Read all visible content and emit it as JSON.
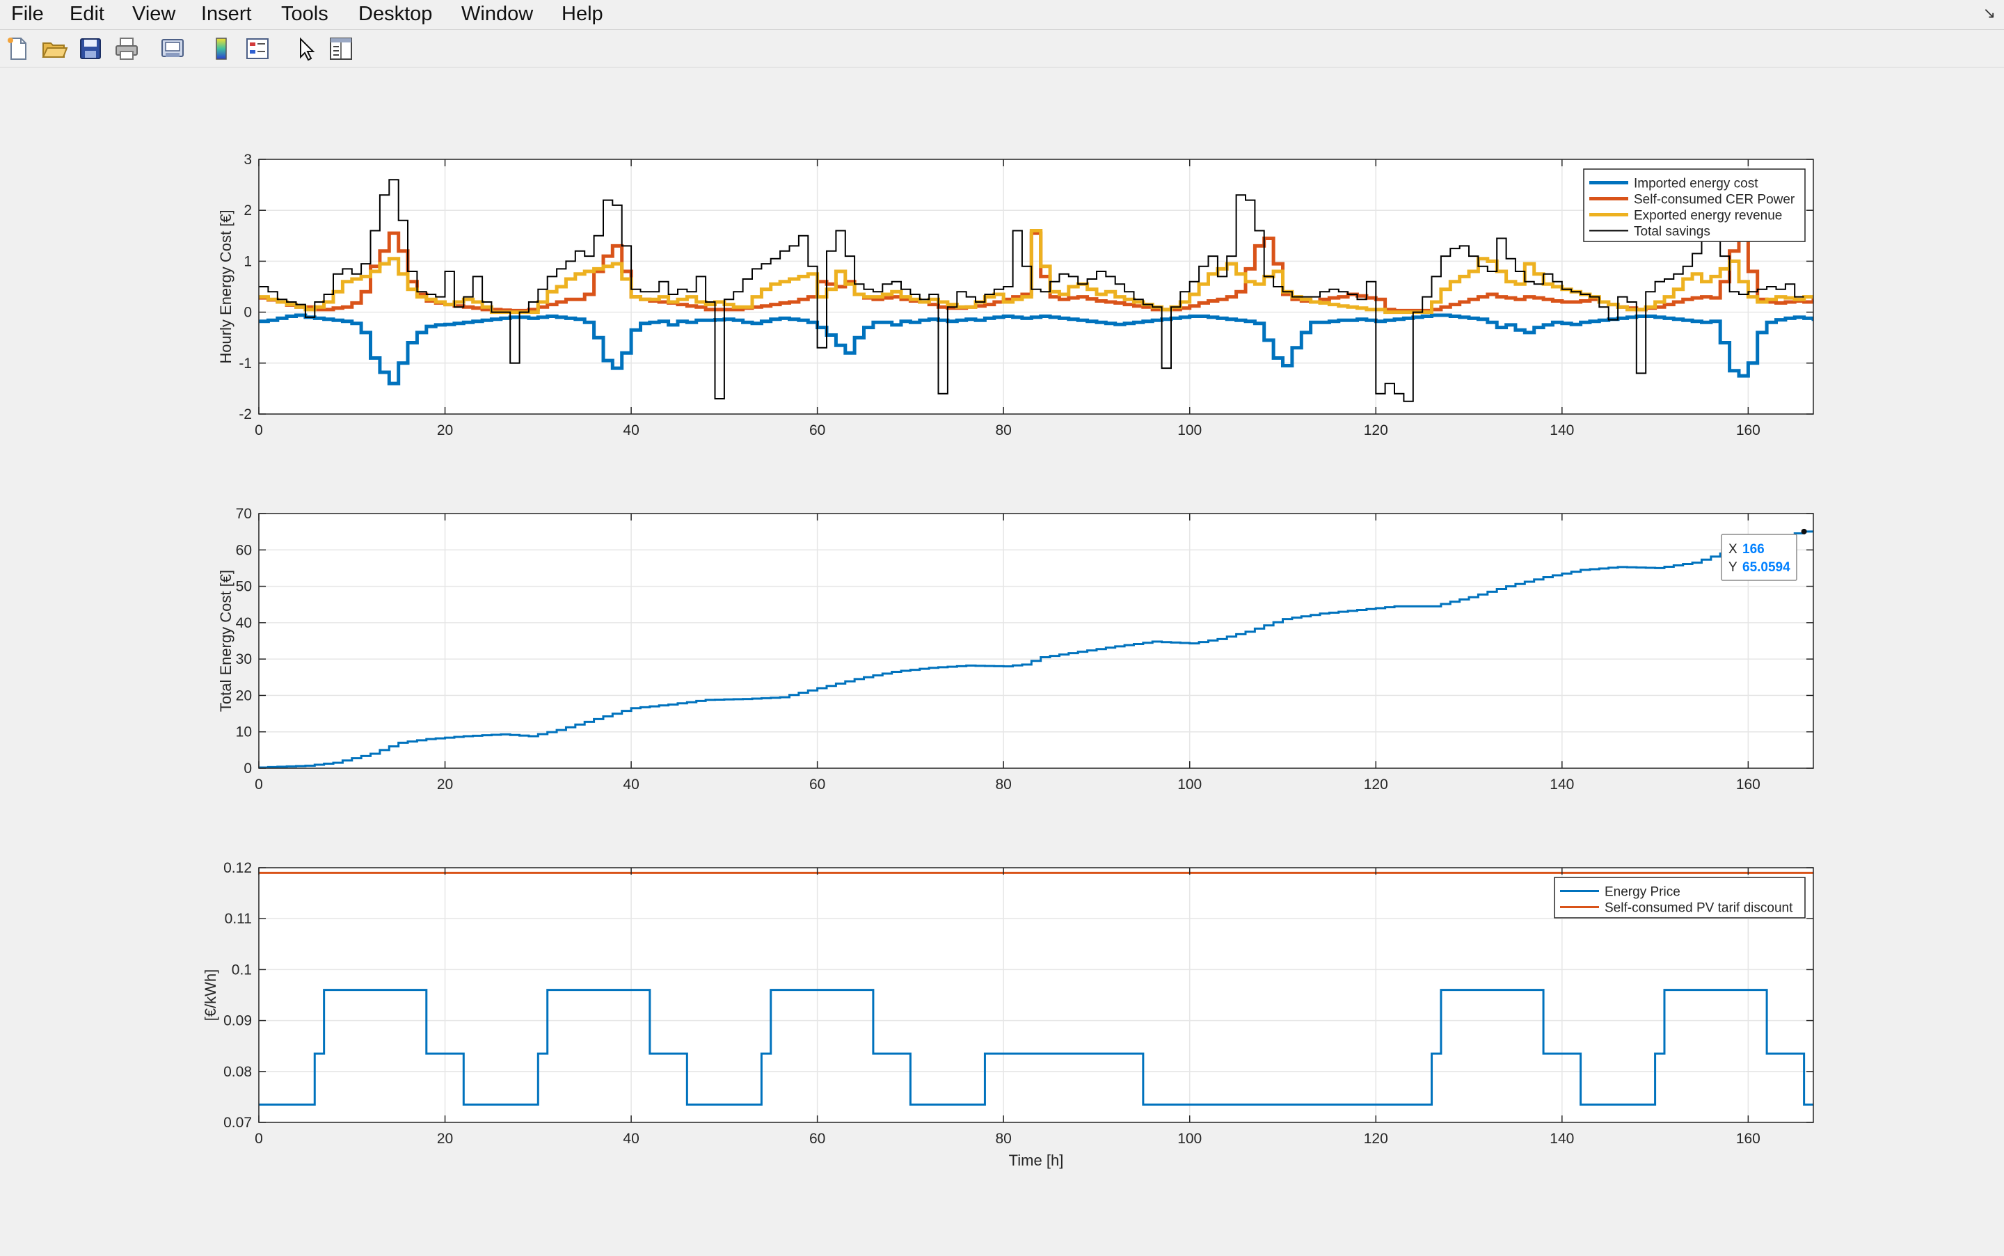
{
  "menu": [
    "File",
    "Edit",
    "View",
    "Insert",
    "Tools",
    "Desktop",
    "Window",
    "Help"
  ],
  "toolbar": [
    "new-figure-icon",
    "open-folder-icon",
    "save-icon",
    "print-icon",
    "print-preview-icon",
    "colorbar-icon",
    "legend-icon",
    "pointer-icon",
    "property-inspector-icon"
  ],
  "chart_data": [
    {
      "type": "line",
      "xlabel": "",
      "ylabel": "Hourly Energy Cost [€]",
      "xlim": [
        0,
        167
      ],
      "ylim": [
        -2,
        3
      ],
      "xticks": [
        0,
        20,
        40,
        60,
        80,
        100,
        120,
        140,
        160
      ],
      "yticks": [
        -2,
        -1,
        0,
        1,
        2,
        3
      ],
      "grid": true,
      "legend_position": "top-right",
      "series": [
        {
          "name": "Imported energy cost",
          "color": "#0072BD",
          "width": 5,
          "values": [
            -0.18,
            -0.16,
            -0.12,
            -0.08,
            -0.06,
            -0.1,
            -0.12,
            -0.14,
            -0.16,
            -0.18,
            -0.22,
            -0.4,
            -0.9,
            -1.18,
            -1.4,
            -1.0,
            -0.6,
            -0.4,
            -0.28,
            -0.25,
            -0.24,
            -0.22,
            -0.2,
            -0.18,
            -0.16,
            -0.14,
            -0.12,
            -0.1,
            -0.1,
            -0.12,
            -0.1,
            -0.08,
            -0.1,
            -0.12,
            -0.14,
            -0.2,
            -0.5,
            -0.95,
            -1.1,
            -0.8,
            -0.35,
            -0.22,
            -0.2,
            -0.18,
            -0.25,
            -0.18,
            -0.2,
            -0.16,
            -0.16,
            -0.15,
            -0.14,
            -0.16,
            -0.2,
            -0.22,
            -0.18,
            -0.14,
            -0.12,
            -0.14,
            -0.16,
            -0.2,
            -0.3,
            -0.45,
            -0.65,
            -0.8,
            -0.5,
            -0.3,
            -0.2,
            -0.2,
            -0.25,
            -0.18,
            -0.2,
            -0.16,
            -0.14,
            -0.16,
            -0.18,
            -0.16,
            -0.14,
            -0.16,
            -0.12,
            -0.1,
            -0.08,
            -0.1,
            -0.12,
            -0.1,
            -0.08,
            -0.1,
            -0.12,
            -0.14,
            -0.16,
            -0.18,
            -0.2,
            -0.22,
            -0.24,
            -0.22,
            -0.2,
            -0.18,
            -0.16,
            -0.14,
            -0.12,
            -0.1,
            -0.08,
            -0.08,
            -0.1,
            -0.12,
            -0.14,
            -0.16,
            -0.18,
            -0.22,
            -0.55,
            -0.9,
            -1.05,
            -0.7,
            -0.4,
            -0.2,
            -0.2,
            -0.18,
            -0.16,
            -0.16,
            -0.14,
            -0.16,
            -0.18,
            -0.16,
            -0.14,
            -0.12,
            -0.1,
            -0.08,
            -0.06,
            -0.06,
            -0.08,
            -0.1,
            -0.12,
            -0.14,
            -0.2,
            -0.3,
            -0.25,
            -0.35,
            -0.4,
            -0.3,
            -0.25,
            -0.2,
            -0.22,
            -0.24,
            -0.2,
            -0.18,
            -0.16,
            -0.14,
            -0.12,
            -0.1,
            -0.08,
            -0.08,
            -0.1,
            -0.12,
            -0.14,
            -0.16,
            -0.18,
            -0.2,
            -0.18,
            -0.6,
            -1.15,
            -1.25,
            -1.0,
            -0.4,
            -0.2,
            -0.15,
            -0.12,
            -0.1,
            -0.12,
            -0.14,
            -0.16,
            -0.15
          ]
        },
        {
          "name": "Self-consumed CER Power",
          "color": "#D95319",
          "width": 5,
          "values": [
            0.28,
            0.24,
            0.2,
            0.14,
            0.1,
            0.1,
            0.05,
            0.05,
            0.08,
            0.1,
            0.18,
            0.4,
            0.9,
            1.2,
            1.55,
            1.2,
            0.6,
            0.35,
            0.22,
            0.18,
            0.15,
            0.12,
            0.1,
            0.08,
            0.05,
            0.05,
            0.04,
            0.03,
            0.03,
            0.05,
            0.1,
            0.15,
            0.2,
            0.25,
            0.25,
            0.35,
            0.8,
            1.1,
            1.3,
            0.8,
            0.3,
            0.25,
            0.22,
            0.2,
            0.18,
            0.15,
            0.12,
            0.1,
            0.05,
            0.05,
            0.05,
            0.05,
            0.08,
            0.1,
            0.12,
            0.15,
            0.18,
            0.2,
            0.25,
            0.3,
            0.6,
            0.55,
            0.5,
            0.6,
            0.35,
            0.28,
            0.25,
            0.28,
            0.3,
            0.25,
            0.22,
            0.2,
            0.15,
            0.1,
            0.08,
            0.08,
            0.1,
            0.12,
            0.15,
            0.2,
            0.25,
            0.3,
            0.35,
            1.55,
            0.7,
            0.3,
            0.25,
            0.28,
            0.3,
            0.26,
            0.22,
            0.2,
            0.18,
            0.15,
            0.12,
            0.1,
            0.05,
            0.05,
            0.05,
            0.08,
            0.12,
            0.18,
            0.22,
            0.25,
            0.3,
            0.4,
            0.85,
            1.3,
            1.45,
            0.95,
            0.35,
            0.25,
            0.22,
            0.2,
            0.25,
            0.28,
            0.3,
            0.35,
            0.32,
            0.28,
            0.25,
            0.05,
            0.03,
            0.03,
            0.03,
            0.03,
            0.05,
            0.1,
            0.15,
            0.2,
            0.25,
            0.3,
            0.35,
            0.3,
            0.28,
            0.25,
            0.3,
            0.28,
            0.25,
            0.22,
            0.2,
            0.2,
            0.22,
            0.25,
            0.2,
            0.15,
            0.1,
            0.08,
            0.05,
            0.08,
            0.1,
            0.15,
            0.2,
            0.25,
            0.28,
            0.3,
            0.28,
            0.6,
            1.2,
            1.6,
            0.8,
            0.25,
            0.2,
            0.18,
            0.2,
            0.22,
            0.2,
            0.25,
            0.2
          ]
        },
        {
          "name": "Exported energy revenue",
          "color": "#EDB120",
          "width": 5,
          "values": [
            0.3,
            0.25,
            0.2,
            0.15,
            0.1,
            0.05,
            0.1,
            0.2,
            0.4,
            0.6,
            0.65,
            0.7,
            0.8,
            0.95,
            1.05,
            0.75,
            0.45,
            0.3,
            0.25,
            0.2,
            0.15,
            0.2,
            0.25,
            0.2,
            0.1,
            0.0,
            0.0,
            0.0,
            0.0,
            0.0,
            0.2,
            0.4,
            0.5,
            0.65,
            0.75,
            0.8,
            0.85,
            0.9,
            0.95,
            0.65,
            0.3,
            0.25,
            0.25,
            0.3,
            0.2,
            0.25,
            0.3,
            0.2,
            0.15,
            0.2,
            0.15,
            0.1,
            0.1,
            0.3,
            0.45,
            0.55,
            0.6,
            0.65,
            0.7,
            0.75,
            0.3,
            0.45,
            0.8,
            0.55,
            0.35,
            0.3,
            0.3,
            0.35,
            0.4,
            0.3,
            0.25,
            0.2,
            0.25,
            0.2,
            0.15,
            0.1,
            0.1,
            0.2,
            0.3,
            0.35,
            0.2,
            0.25,
            0.3,
            1.6,
            0.9,
            0.4,
            0.35,
            0.5,
            0.55,
            0.45,
            0.35,
            0.4,
            0.3,
            0.25,
            0.2,
            0.15,
            0.1,
            0.05,
            0.1,
            0.2,
            0.35,
            0.55,
            0.75,
            0.85,
            0.95,
            0.75,
            0.6,
            0.55,
            0.7,
            0.8,
            0.4,
            0.3,
            0.25,
            0.2,
            0.18,
            0.15,
            0.12,
            0.1,
            0.08,
            0.05,
            0.05,
            0.0,
            0.0,
            0.0,
            0.0,
            0.0,
            0.2,
            0.45,
            0.6,
            0.7,
            0.8,
            1.05,
            1.0,
            0.8,
            0.6,
            0.55,
            0.95,
            0.75,
            0.55,
            0.5,
            0.45,
            0.4,
            0.35,
            0.3,
            0.2,
            0.15,
            0.1,
            0.05,
            0.05,
            0.1,
            0.2,
            0.3,
            0.45,
            0.65,
            0.75,
            0.6,
            0.7,
            0.85,
            1.0,
            0.6,
            0.3,
            0.2,
            0.25,
            0.3,
            0.28,
            0.25,
            0.3
          ]
        },
        {
          "name": "Total savings",
          "color": "#000000",
          "width": 2,
          "values": [
            0.5,
            0.4,
            0.25,
            0.2,
            0.15,
            -0.1,
            0.2,
            0.35,
            0.75,
            0.85,
            0.75,
            0.95,
            1.6,
            2.3,
            2.6,
            1.8,
            0.8,
            0.4,
            0.35,
            0.3,
            0.8,
            0.1,
            0.3,
            0.7,
            0.2,
            0.0,
            0.0,
            -1.0,
            0.0,
            0.2,
            0.45,
            0.7,
            0.85,
            1.0,
            1.2,
            1.1,
            1.5,
            2.2,
            2.1,
            1.3,
            0.45,
            0.4,
            0.4,
            0.6,
            0.35,
            0.45,
            0.4,
            0.7,
            0.2,
            -1.7,
            0.25,
            0.4,
            0.65,
            0.85,
            0.95,
            1.05,
            1.2,
            1.3,
            1.5,
            0.9,
            -0.7,
            1.2,
            1.6,
            1.1,
            0.55,
            0.45,
            0.4,
            0.55,
            0.6,
            0.45,
            0.35,
            0.25,
            0.35,
            -1.6,
            0.1,
            0.4,
            0.3,
            0.2,
            0.35,
            0.45,
            0.5,
            1.6,
            0.9,
            0.45,
            0.4,
            0.6,
            0.75,
            0.7,
            0.55,
            0.65,
            0.8,
            0.7,
            0.55,
            0.4,
            0.25,
            0.15,
            0.1,
            -1.1,
            0.1,
            0.4,
            0.6,
            0.9,
            1.1,
            0.7,
            1.1,
            2.3,
            2.2,
            1.6,
            0.7,
            0.5,
            0.4,
            0.3,
            0.3,
            0.3,
            0.4,
            0.45,
            0.4,
            0.35,
            0.25,
            0.6,
            -1.6,
            -1.4,
            -1.6,
            -1.75,
            0.0,
            0.3,
            0.7,
            1.1,
            1.25,
            1.3,
            1.1,
            0.9,
            0.8,
            1.45,
            1.05,
            0.8,
            0.6,
            0.55,
            0.75,
            0.6,
            0.45,
            0.4,
            0.35,
            0.3,
            0.1,
            -0.15,
            0.3,
            0.2,
            -1.2,
            0.4,
            0.6,
            0.65,
            0.75,
            0.9,
            1.15,
            1.4,
            1.9,
            1.1,
            0.4,
            0.35,
            0.4,
            0.45,
            0.5,
            0.45,
            0.55,
            0.3
          ]
        }
      ]
    },
    {
      "type": "line",
      "xlabel": "",
      "ylabel": "Total Energy Cost [€]",
      "xlim": [
        0,
        167
      ],
      "ylim": [
        0,
        70
      ],
      "xticks": [
        0,
        20,
        40,
        60,
        80,
        100,
        120,
        140,
        160
      ],
      "yticks": [
        0,
        10,
        20,
        30,
        40,
        50,
        60,
        70
      ],
      "grid": true,
      "datatip": {
        "X_label": "X",
        "X_value": "166",
        "Y_label": "Y",
        "Y_value": "65.0594",
        "x": 166,
        "y": 65.0594
      },
      "series": [
        {
          "color": "#0072BD",
          "width": 3,
          "knots": [
            [
              0,
              0.2
            ],
            [
              5,
              0.7
            ],
            [
              8,
              1.5
            ],
            [
              12,
              4.0
            ],
            [
              15,
              7.0
            ],
            [
              18,
              8.0
            ],
            [
              22,
              8.8
            ],
            [
              26,
              9.3
            ],
            [
              29,
              8.8
            ],
            [
              32,
              10.5
            ],
            [
              36,
              13.5
            ],
            [
              40,
              16.5
            ],
            [
              44,
              17.5
            ],
            [
              48,
              18.8
            ],
            [
              52,
              19.0
            ],
            [
              56,
              19.5
            ],
            [
              60,
              22.0
            ],
            [
              64,
              24.5
            ],
            [
              68,
              26.5
            ],
            [
              72,
              27.6
            ],
            [
              76,
              28.2
            ],
            [
              80,
              28.0
            ],
            [
              82,
              28.5
            ],
            [
              84,
              30.5
            ],
            [
              88,
              32.0
            ],
            [
              92,
              33.5
            ],
            [
              96,
              34.8
            ],
            [
              100,
              34.3
            ],
            [
              103,
              35.5
            ],
            [
              106,
              37.5
            ],
            [
              110,
              41.0
            ],
            [
              114,
              42.5
            ],
            [
              118,
              43.5
            ],
            [
              122,
              44.5
            ],
            [
              126,
              44.5
            ],
            [
              130,
              47.0
            ],
            [
              134,
              50.0
            ],
            [
              138,
              52.5
            ],
            [
              142,
              54.5
            ],
            [
              146,
              55.3
            ],
            [
              150,
              55.0
            ],
            [
              154,
              56.5
            ],
            [
              157,
              59.0
            ],
            [
              160,
              61.0
            ],
            [
              163,
              63.5
            ],
            [
              166,
              65.06
            ],
            [
              167,
              65.06
            ]
          ]
        }
      ]
    },
    {
      "type": "line",
      "xlabel": "Time [h]",
      "ylabel": "[€/kWh]",
      "xlim": [
        0,
        167
      ],
      "ylim": [
        0.07,
        0.12
      ],
      "xticks": [
        0,
        20,
        40,
        60,
        80,
        100,
        120,
        140,
        160
      ],
      "yticks": [
        0.07,
        0.08,
        0.09,
        0.1,
        0.11,
        0.12
      ],
      "grid": true,
      "legend_position": "top-right",
      "series": [
        {
          "name": "Energy Price",
          "color": "#0072BD",
          "width": 3,
          "steps": [
            [
              0,
              0.0735
            ],
            [
              6,
              0.0835
            ],
            [
              7,
              0.096
            ],
            [
              18,
              0.0835
            ],
            [
              22,
              0.0735
            ],
            [
              30,
              0.0835
            ],
            [
              31,
              0.096
            ],
            [
              42,
              0.0835
            ],
            [
              46,
              0.0735
            ],
            [
              54,
              0.0835
            ],
            [
              55,
              0.096
            ],
            [
              66,
              0.0835
            ],
            [
              70,
              0.0735
            ],
            [
              78,
              0.0835
            ],
            [
              95,
              0.0735
            ],
            [
              126,
              0.0835
            ],
            [
              127,
              0.096
            ],
            [
              138,
              0.0835
            ],
            [
              142,
              0.0735
            ],
            [
              150,
              0.0835
            ],
            [
              151,
              0.096
            ],
            [
              162,
              0.0835
            ],
            [
              166,
              0.0735
            ],
            [
              167,
              0.0735
            ]
          ]
        },
        {
          "name": "Self-consumed PV tarif discount",
          "color": "#D95319",
          "width": 3,
          "constant": 0.119
        }
      ]
    }
  ]
}
